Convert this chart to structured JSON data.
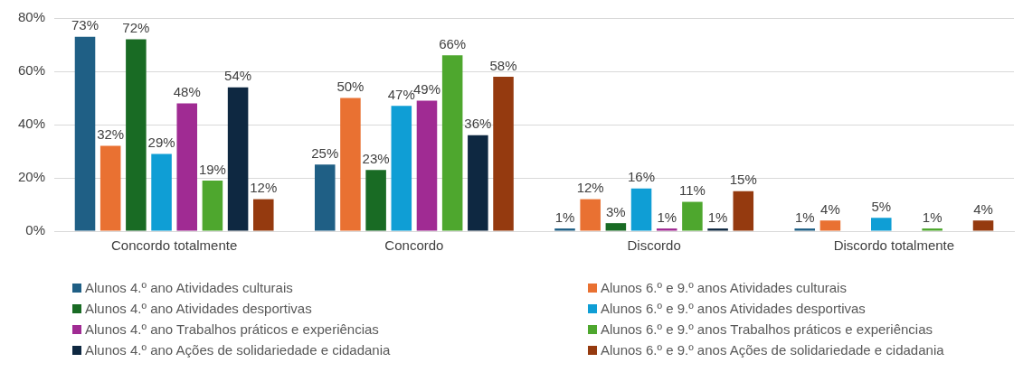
{
  "chart_data": {
    "type": "bar",
    "categories": [
      "Concordo totalmente",
      "Concordo",
      "Discordo",
      "Discordo totalmente"
    ],
    "ylim": [
      0,
      80
    ],
    "yticks": [
      {
        "value": 0,
        "label": "0%"
      },
      {
        "value": 20,
        "label": "20%"
      },
      {
        "value": 40,
        "label": "40%"
      },
      {
        "value": 60,
        "label": "60%"
      },
      {
        "value": 80,
        "label": "80%"
      }
    ],
    "grid": "y",
    "legend": "bottom",
    "series": [
      {
        "name": "Alunos 4.º ano Atividades culturais",
        "color": "#1f5f85",
        "values": [
          73,
          25,
          1,
          1
        ],
        "value_labels": [
          "73%",
          "25%",
          "1%",
          "1%"
        ]
      },
      {
        "name": "Alunos 6.º e 9.º anos Atividades culturais",
        "color": "#e97132",
        "values": [
          32,
          50,
          12,
          4
        ],
        "value_labels": [
          "32%",
          "50%",
          "12%",
          "4%"
        ]
      },
      {
        "name": "Alunos 4.º ano Atividades desportivas",
        "color": "#196b24",
        "values": [
          72,
          23,
          3,
          null
        ],
        "value_labels": [
          "72%",
          "23%",
          "3%",
          null
        ]
      },
      {
        "name": "Alunos 6.º e 9.º anos Atividades desportivas",
        "color": "#0f9ed5",
        "values": [
          29,
          47,
          16,
          5
        ],
        "value_labels": [
          "29%",
          "47%",
          "16%",
          "5%"
        ]
      },
      {
        "name": "Alunos 4.º ano Trabalhos práticos e experiências",
        "color": "#a02b93",
        "values": [
          48,
          49,
          1,
          null
        ],
        "value_labels": [
          "48%",
          "49%",
          "1%",
          null
        ]
      },
      {
        "name": "Alunos 6.º e 9.º anos Trabalhos práticos e experiências",
        "color": "#4ea72e",
        "values": [
          19,
          66,
          11,
          1
        ],
        "value_labels": [
          "19%",
          "66%",
          "11%",
          "1%"
        ]
      },
      {
        "name": "Alunos 4.º ano Ações de solidariedade e cidadania",
        "color": "#0e2841",
        "values": [
          54,
          36,
          1,
          null
        ],
        "value_labels": [
          "54%",
          "36%",
          "1%",
          null
        ]
      },
      {
        "name": "Alunos 6.º e 9.º anos Ações de solidariedade e cidadania",
        "color": "#953a0f",
        "values": [
          12,
          58,
          15,
          4
        ],
        "value_labels": [
          "12%",
          "58%",
          "15%",
          "4%"
        ]
      }
    ]
  }
}
